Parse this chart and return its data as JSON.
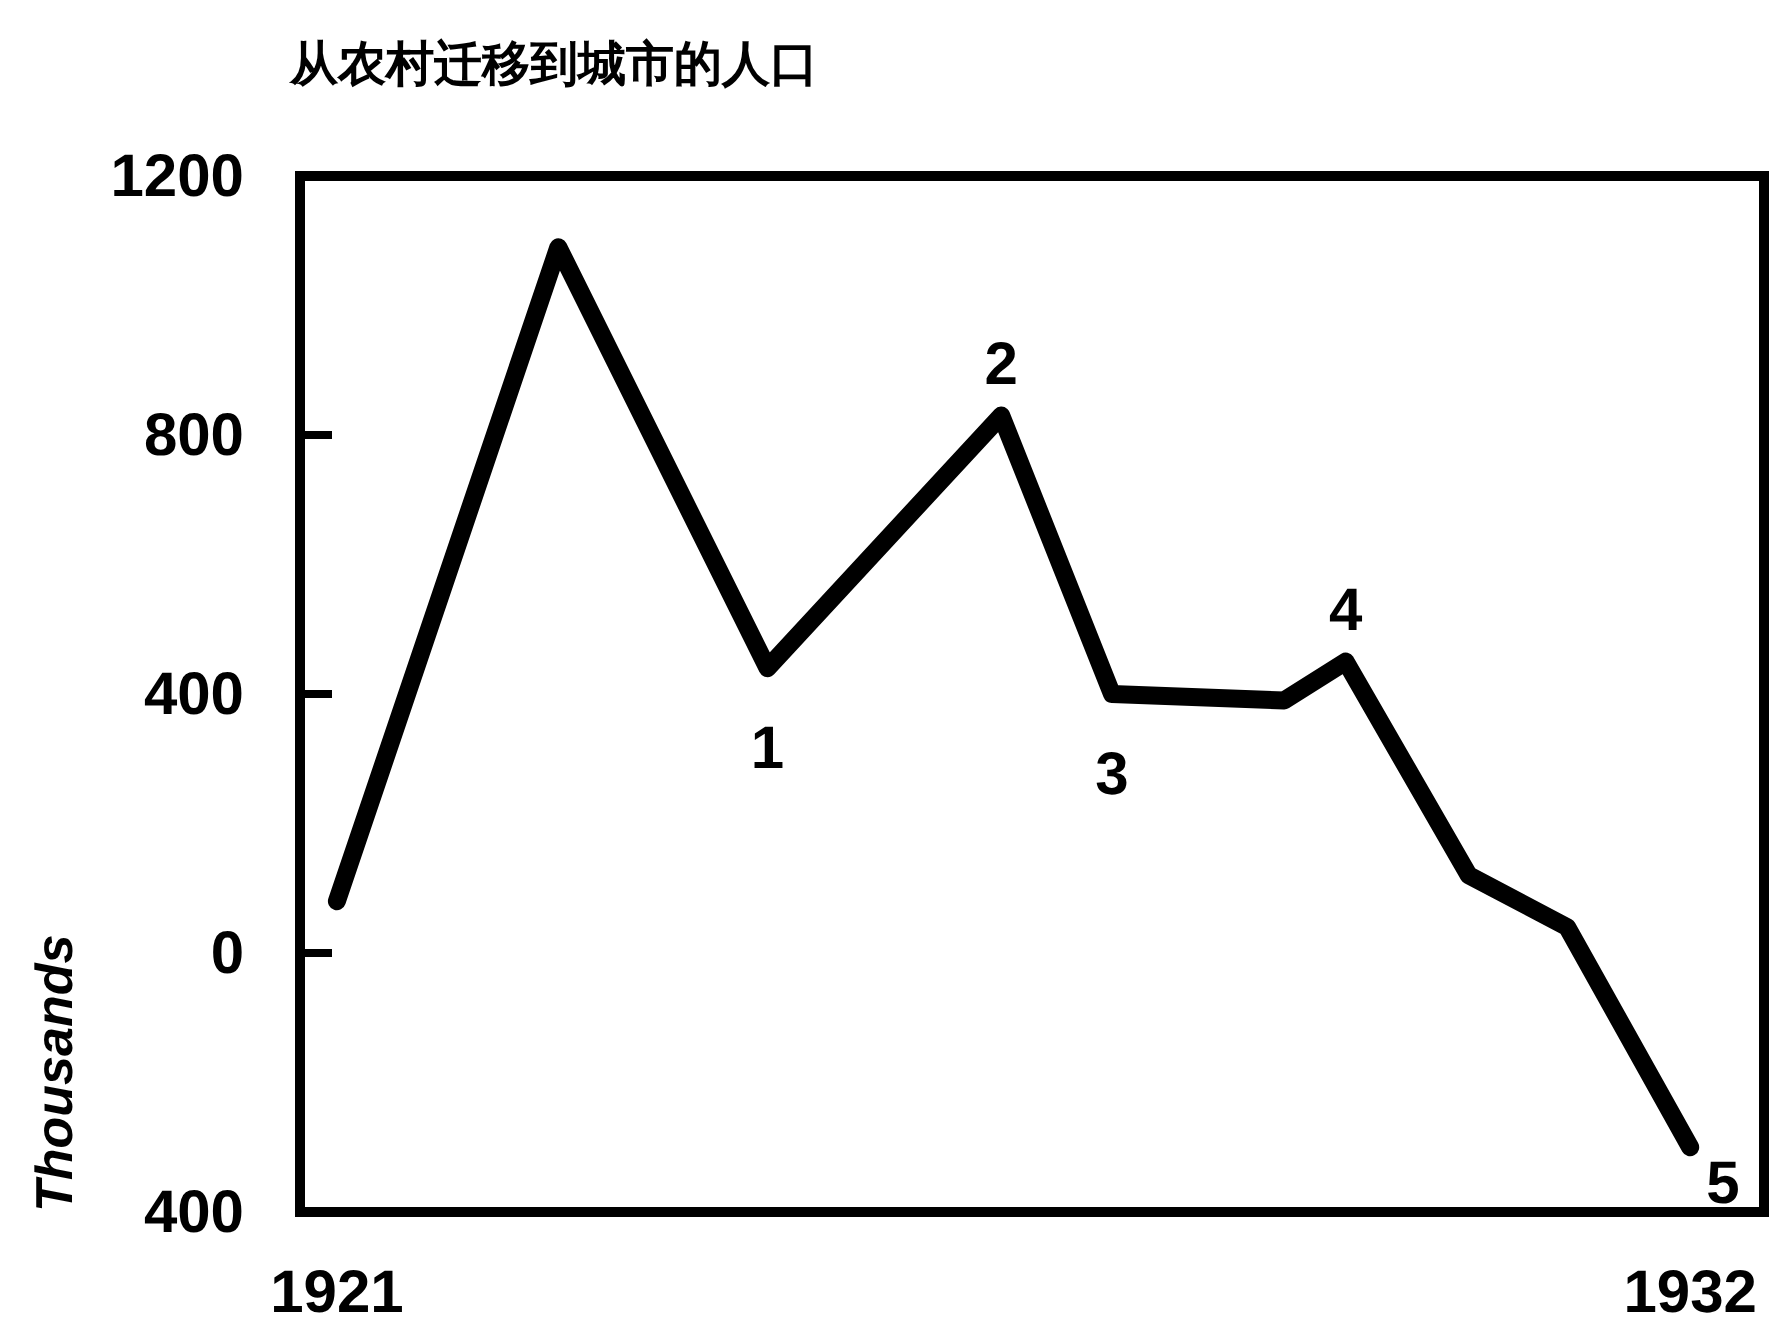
{
  "chart_data": {
    "type": "line",
    "title": "从农村迁移到城市的人口",
    "ylabel": "Thousands",
    "x": [
      1921,
      1922.8,
      1924.5,
      1926.4,
      1927.3,
      1928.7,
      1929.2,
      1930.2,
      1931,
      1932
    ],
    "series": [
      {
        "color": "#000000",
        "values": [
          80,
          1090,
          440,
          830,
          400,
          390,
          450,
          120,
          40,
          -300
        ]
      }
    ],
    "xlim": [
      1920.7,
      1932.6
    ],
    "xticks": [
      1921,
      1932
    ],
    "ylim": [
      -400,
      1200
    ],
    "yticks": [
      {
        "value": -400,
        "label": "400"
      },
      0,
      400,
      800,
      1200
    ],
    "annotations": [
      {
        "text": "1",
        "x": 1924.5,
        "y": 440
      },
      {
        "text": "2",
        "x": 1926.4,
        "y": 830
      },
      {
        "text": "3",
        "x": 1927.3,
        "y": 400
      },
      {
        "text": "4",
        "x": 1929.2,
        "y": 450
      },
      {
        "text": "5",
        "x": 1932,
        "y": -300
      }
    ],
    "grid": false,
    "marker": "none",
    "line_style": "solid"
  }
}
